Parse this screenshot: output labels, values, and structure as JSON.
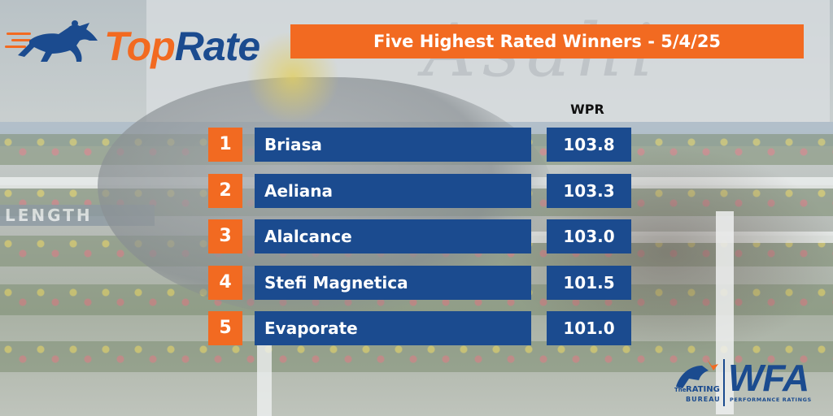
{
  "logo": {
    "word_top": "Top",
    "word_rate": "Rate"
  },
  "title": "Five Highest Rated Winners - 5/4/25",
  "column_header": "WPR",
  "rows": [
    {
      "rank": "1",
      "name": "Briasa",
      "rating": "103.8"
    },
    {
      "rank": "2",
      "name": "Aeliana",
      "rating": "103.3"
    },
    {
      "rank": "3",
      "name": "Alalcance",
      "rating": "103.0"
    },
    {
      "rank": "4",
      "name": "Stefi Magnetica",
      "rating": "101.5"
    },
    {
      "rank": "5",
      "name": "Evaporate",
      "rating": "101.0"
    }
  ],
  "background": {
    "billboard_text": "Asahi",
    "sign_text": "LENGTH"
  },
  "footer_logos": {
    "trb_the": "The",
    "trb_rating": "RATING",
    "trb_bureau": "BUREAU",
    "wfa": "WFA",
    "wfa_tagline": "PERFORMANCE RATINGS"
  },
  "colors": {
    "orange": "#f26a21",
    "blue": "#1b4b8f"
  }
}
